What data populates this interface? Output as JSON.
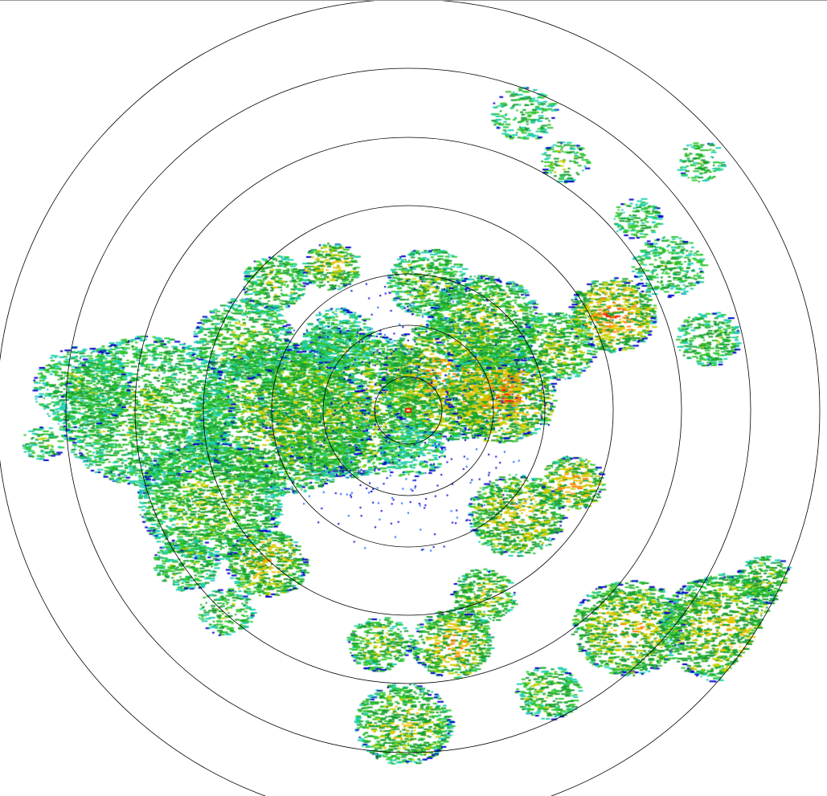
{
  "radar": {
    "product": "reflectivity-ppi",
    "palette": [
      "#0000cc",
      "#1060ff",
      "#20d0b0",
      "#30c830",
      "#18a030",
      "#c8d000",
      "#f0c000",
      "#ff8000",
      "#f02000"
    ],
    "ring_color": "#000000",
    "range_rings": 7
  }
}
